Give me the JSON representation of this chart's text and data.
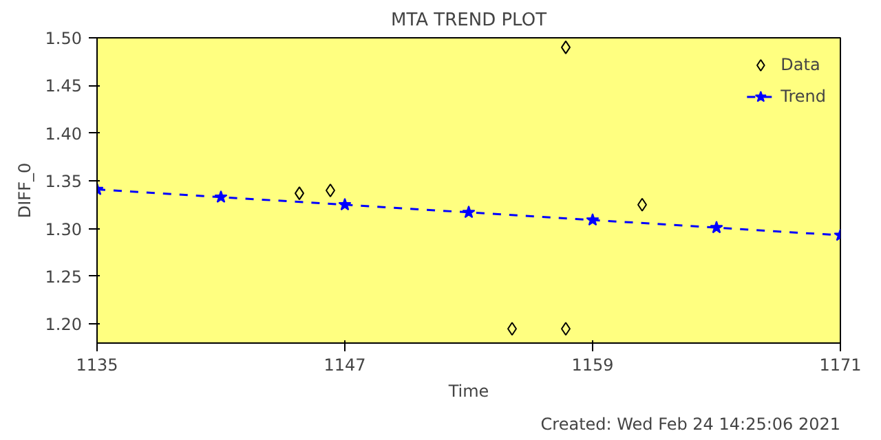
{
  "chart_data": {
    "type": "scatter",
    "title": "MTA TREND PLOT",
    "xlabel": "Time",
    "ylabel": "DIFF_0",
    "series": [
      {
        "name": "Data",
        "color": "#000000",
        "marker": "diamond",
        "x": [
          1144.8,
          1146.3,
          1155.1,
          1157.7,
          1157.7,
          1161.4
        ],
        "values": [
          1.337,
          1.34,
          1.195,
          1.49,
          1.195,
          1.325
        ]
      },
      {
        "name": "Trend",
        "type": "line",
        "color": "#0000ff",
        "marker": "star",
        "line_style": "dashed",
        "x": [
          1135,
          1141,
          1147,
          1153,
          1159,
          1165,
          1171
        ],
        "values": [
          1.341,
          1.333,
          1.325,
          1.317,
          1.309,
          1.301,
          1.293
        ]
      }
    ],
    "xlim": [
      1135,
      1171
    ],
    "xticks": [
      1135,
      1147,
      1159,
      1171
    ],
    "ylim": [
      1.18,
      1.5
    ],
    "yticks": [
      {
        "value": 1.2,
        "label": "1.20"
      },
      {
        "value": 1.25,
        "label": "1.25"
      },
      {
        "value": 1.3,
        "label": "1.30"
      },
      {
        "value": 1.35,
        "label": "1.35"
      },
      {
        "value": 1.4,
        "label": "1.40"
      },
      {
        "value": 1.45,
        "label": "1.45"
      },
      {
        "value": 1.5,
        "label": "1.50"
      }
    ],
    "grid": false,
    "legend": "top right",
    "annotations": [
      "Created: Wed Feb 24 14:25:06 2021"
    ]
  }
}
